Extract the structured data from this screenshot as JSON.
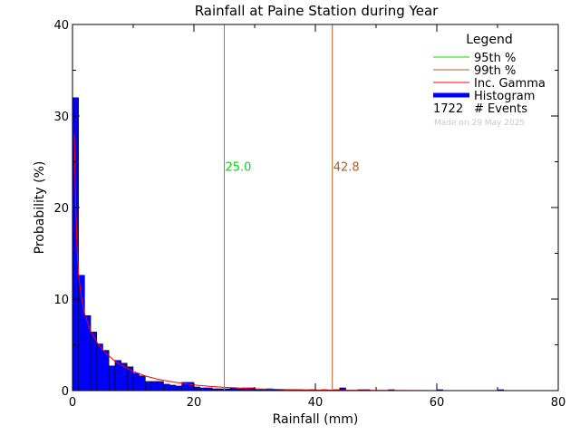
{
  "chart_data": {
    "type": "bar",
    "title": "Rainfall at Paine Station during Year",
    "xlabel": "Rainfall (mm)",
    "ylabel": "Probability (%)",
    "xlim": [
      0,
      80
    ],
    "ylim": [
      0,
      40
    ],
    "xticks": [
      0,
      20,
      40,
      60,
      80
    ],
    "yticks": [
      0,
      10,
      20,
      30,
      40
    ],
    "grid": false,
    "legend_position": "top-right",
    "histogram": {
      "name": "Histogram",
      "color": "#0000ff",
      "bin_width": 1,
      "bins_start": [
        0,
        1,
        2,
        3,
        4,
        5,
        6,
        7,
        8,
        9,
        10,
        11,
        12,
        13,
        14,
        15,
        16,
        17,
        18,
        19,
        20,
        21,
        22,
        23,
        24,
        25,
        26,
        27,
        28,
        29,
        30,
        31,
        32,
        33,
        34,
        35,
        36,
        37,
        38,
        39,
        40,
        41,
        42,
        43,
        44,
        45,
        46,
        47,
        48,
        49,
        50,
        51,
        52,
        53,
        54,
        55,
        56,
        57,
        58,
        59,
        60,
        61,
        62,
        63,
        64,
        65,
        66,
        67,
        68,
        69,
        70,
        71,
        72,
        73,
        74,
        75,
        76,
        77,
        78,
        79
      ],
      "values": [
        32.0,
        12.6,
        8.2,
        6.4,
        5.1,
        4.4,
        2.7,
        3.3,
        3.0,
        2.6,
        1.9,
        1.6,
        1.0,
        1.0,
        1.0,
        0.7,
        0.6,
        0.5,
        0.9,
        0.9,
        0.4,
        0.3,
        0.3,
        0.2,
        0.2,
        0.2,
        0.3,
        0.2,
        0.3,
        0.3,
        0.1,
        0.1,
        0.2,
        0.1,
        0.1,
        0.0,
        0.1,
        0.1,
        0.0,
        0.1,
        0.0,
        0.1,
        0.0,
        0.1,
        0.3,
        0.0,
        0.0,
        0.1,
        0.1,
        0.0,
        0.0,
        0.0,
        0.1,
        0.0,
        0.0,
        0.0,
        0.0,
        0.0,
        0.0,
        0.0,
        0.1,
        0.0,
        0.0,
        0.0,
        0.0,
        0.0,
        0.0,
        0.0,
        0.0,
        0.0,
        0.1,
        0.0,
        0.0,
        0.0,
        0.0,
        0.0,
        0.0,
        0.0,
        0.0,
        0.0
      ]
    },
    "fit_curve": {
      "name": "Inc. Gamma",
      "color": "#ff0000",
      "x": [
        0.3,
        0.5,
        0.75,
        1,
        1.5,
        2,
        2.5,
        3,
        4,
        5,
        6,
        7,
        8,
        10,
        12,
        14,
        16,
        18,
        20,
        22,
        25,
        30,
        35,
        40,
        50,
        60,
        70,
        80
      ],
      "y": [
        28,
        21,
        15.5,
        12.6,
        10,
        8.4,
        7.4,
        6.5,
        5.3,
        4.4,
        3.8,
        3.2,
        2.8,
        2.1,
        1.6,
        1.25,
        1.0,
        0.8,
        0.62,
        0.5,
        0.36,
        0.2,
        0.11,
        0.06,
        0.02,
        0.006,
        0.002,
        0.0
      ]
    },
    "percentile_lines": [
      {
        "name": "95th %",
        "value": 25.0,
        "label": "25.0",
        "color": "#00dd00"
      },
      {
        "name": "99th %",
        "value": 42.8,
        "label": "42.8",
        "color": "#b06020"
      }
    ],
    "legend": {
      "title": "Legend",
      "events_count": "1722",
      "events_label": "# Events",
      "made_on": "Made on 29 May 2025"
    }
  }
}
